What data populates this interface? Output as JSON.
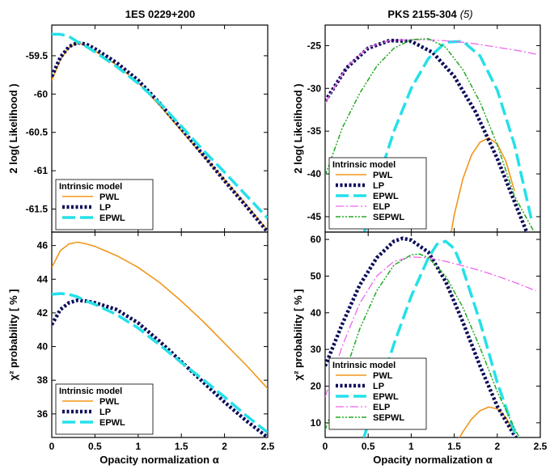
{
  "figure": {
    "titles": [
      "1ES 0229+200",
      "PKS 2155-304"
    ],
    "title_suffix": "(5)",
    "legend_title": "Intrinsic model"
  },
  "colors": {
    "PWL": "#f0961a",
    "LP": "#0c0c5a",
    "EPWL": "#24e0e8",
    "ELP": "#ee66ee",
    "SEPWL": "#22aa22"
  },
  "chart_data": [
    {
      "type": "line",
      "panel": "top-left",
      "title": "1ES 0229+200",
      "xlabel": "",
      "ylabel": "2 log( Likelihood )",
      "xlim": [
        0,
        2.5
      ],
      "ylim": [
        -61.8,
        -59.1
      ],
      "xticks": [],
      "yticks": [
        -61.5,
        -61,
        -60.5,
        -60,
        -59.5
      ],
      "legend": "bottom-left",
      "grid": false,
      "series": [
        {
          "name": "PWL",
          "x": [
            0,
            0.1,
            0.2,
            0.3,
            0.4,
            0.5,
            0.75,
            1,
            1.25,
            1.5,
            1.75,
            2,
            2.25,
            2.5
          ],
          "y": [
            -59.82,
            -59.55,
            -59.39,
            -59.33,
            -59.37,
            -59.44,
            -59.62,
            -59.85,
            -60.15,
            -60.48,
            -60.8,
            -61.12,
            -61.44,
            -61.78
          ]
        },
        {
          "name": "LP",
          "x": [
            0,
            0.1,
            0.2,
            0.3,
            0.4,
            0.5,
            0.75,
            1,
            1.25,
            1.5,
            1.75,
            2,
            2.25,
            2.5
          ],
          "y": [
            -59.77,
            -59.52,
            -59.38,
            -59.33,
            -59.35,
            -59.41,
            -59.59,
            -59.82,
            -60.12,
            -60.45,
            -60.79,
            -61.13,
            -61.46,
            -61.8
          ]
        },
        {
          "name": "EPWL",
          "x": [
            0,
            0.1,
            0.2,
            0.3,
            0.4,
            0.5,
            0.75,
            1,
            1.25,
            1.5,
            1.75,
            2,
            2.25,
            2.5
          ],
          "y": [
            -59.22,
            -59.22,
            -59.25,
            -59.32,
            -59.38,
            -59.45,
            -59.64,
            -59.86,
            -60.12,
            -60.42,
            -60.73,
            -61.02,
            -61.32,
            -61.62
          ]
        }
      ]
    },
    {
      "type": "line",
      "panel": "bottom-left",
      "title": "",
      "xlabel": "Opacity normalization α",
      "ylabel": "χ² probability [ % ]",
      "xlim": [
        0,
        2.5
      ],
      "ylim": [
        34.6,
        46.8
      ],
      "xticks": [
        0,
        0.5,
        1,
        1.5,
        2,
        2.5
      ],
      "yticks": [
        36,
        38,
        40,
        42,
        44,
        46
      ],
      "legend": "bottom-left",
      "grid": false,
      "series": [
        {
          "name": "PWL",
          "x": [
            0,
            0.1,
            0.2,
            0.3,
            0.4,
            0.5,
            0.75,
            1,
            1.25,
            1.5,
            1.75,
            2,
            2.25,
            2.5
          ],
          "y": [
            44.7,
            45.7,
            46.1,
            46.2,
            46.1,
            45.95,
            45.4,
            44.7,
            43.8,
            42.7,
            41.5,
            40.2,
            38.9,
            37.5
          ]
        },
        {
          "name": "LP",
          "x": [
            0,
            0.1,
            0.2,
            0.3,
            0.4,
            0.5,
            0.75,
            1,
            1.25,
            1.5,
            1.75,
            2,
            2.25,
            2.5
          ],
          "y": [
            41.3,
            42.2,
            42.6,
            42.75,
            42.7,
            42.6,
            42.2,
            41.4,
            40.3,
            39.1,
            37.9,
            36.7,
            35.6,
            34.6
          ]
        },
        {
          "name": "EPWL",
          "x": [
            0,
            0.1,
            0.2,
            0.3,
            0.4,
            0.5,
            0.75,
            1,
            1.25,
            1.5,
            1.75,
            2,
            2.25,
            2.5
          ],
          "y": [
            43.1,
            43.15,
            43.1,
            42.95,
            42.7,
            42.5,
            41.9,
            41.1,
            40.1,
            39.05,
            38.05,
            37.0,
            35.9,
            34.9
          ]
        }
      ]
    },
    {
      "type": "line",
      "panel": "top-right",
      "title": "PKS 2155-304",
      "xlabel": "",
      "ylabel": "2 log( Likelihood )",
      "xlim": [
        0,
        2.5
      ],
      "ylim": [
        -46.8,
        -22.6
      ],
      "xticks": [],
      "yticks": [
        -45,
        -40,
        -35,
        -30,
        -25
      ],
      "legend": "bottom-left",
      "grid": false,
      "series": [
        {
          "name": "PWL",
          "x": [
            1.4,
            1.5,
            1.6,
            1.7,
            1.8,
            1.9,
            2.0,
            2.1,
            2.2
          ],
          "y": [
            -50.5,
            -44.8,
            -40.6,
            -37.8,
            -36.3,
            -35.8,
            -36.5,
            -38.5,
            -42.0
          ]
        },
        {
          "name": "LP",
          "x": [
            0,
            0.25,
            0.5,
            0.75,
            1,
            1.25,
            1.5,
            1.75,
            2,
            2.25,
            2.45
          ],
          "y": [
            -31.5,
            -27.6,
            -25.3,
            -24.4,
            -24.5,
            -25.8,
            -28.6,
            -32.8,
            -38.2,
            -44.5,
            -49.5
          ]
        },
        {
          "name": "EPWL",
          "x": [
            0.45,
            0.6,
            0.8,
            1.0,
            1.2,
            1.4,
            1.6,
            1.8,
            2.0,
            2.2,
            2.4
          ],
          "y": [
            -47,
            -41.2,
            -35.0,
            -30.0,
            -26.5,
            -24.6,
            -24.5,
            -26.2,
            -30.2,
            -36.6,
            -45.5
          ]
        },
        {
          "name": "ELP",
          "x": [
            0,
            0.25,
            0.5,
            0.75,
            1,
            1.25,
            1.5,
            1.75,
            2,
            2.25,
            2.45
          ],
          "y": [
            -31.7,
            -27.5,
            -25.2,
            -24.4,
            -24.3,
            -24.35,
            -24.5,
            -24.8,
            -25.2,
            -25.6,
            -26.0
          ]
        },
        {
          "name": "SEPWL",
          "x": [
            0,
            0.2,
            0.4,
            0.6,
            0.8,
            1,
            1.2,
            1.4,
            1.6,
            1.8,
            2,
            2.2,
            2.45
          ],
          "y": [
            -40.2,
            -34.6,
            -30.6,
            -27.4,
            -25.3,
            -24.3,
            -24.2,
            -25.2,
            -27.8,
            -31.6,
            -36.6,
            -42.6,
            -47.2
          ]
        }
      ]
    },
    {
      "type": "line",
      "panel": "bottom-right",
      "title": "",
      "xlabel": "Opacity normalization α",
      "ylabel": "χ² probability [ % ]",
      "xlim": [
        0,
        2.5
      ],
      "ylim": [
        6,
        62
      ],
      "xticks": [
        0,
        0.5,
        1,
        1.5,
        2,
        2.5
      ],
      "yticks": [
        10,
        20,
        30,
        40,
        50,
        60
      ],
      "legend": "bottom-left",
      "grid": false,
      "series": [
        {
          "name": "PWL",
          "x": [
            1.5,
            1.6,
            1.7,
            1.8,
            1.9,
            2.0,
            2.1,
            2.2
          ],
          "y": [
            3.5,
            7.5,
            11.0,
            13.3,
            14.3,
            13.8,
            11.5,
            7.0
          ]
        },
        {
          "name": "LP",
          "x": [
            0,
            0.2,
            0.4,
            0.6,
            0.8,
            0.9,
            1.0,
            1.2,
            1.4,
            1.6,
            1.8,
            2.0,
            2.2,
            2.25
          ],
          "y": [
            25.5,
            37.0,
            47.5,
            55.0,
            59.5,
            60.3,
            59.8,
            56.5,
            48.5,
            37.5,
            25.5,
            14.5,
            6.5,
            5.0
          ]
        },
        {
          "name": "EPWL",
          "x": [
            0.45,
            0.6,
            0.8,
            1.0,
            1.2,
            1.3,
            1.4,
            1.5,
            1.6,
            1.8,
            2.0,
            2.2,
            2.25
          ],
          "y": [
            6.0,
            17.0,
            31.5,
            44.5,
            55.0,
            58.7,
            59.5,
            57.5,
            52.0,
            37.5,
            21.0,
            7.5,
            5.0
          ]
        },
        {
          "name": "ELP",
          "x": [
            0,
            0.2,
            0.4,
            0.6,
            0.8,
            1.0,
            1.2,
            1.4,
            1.6,
            1.8,
            2.0,
            2.2,
            2.45
          ],
          "y": [
            17.0,
            31.0,
            42.5,
            50.0,
            54.0,
            55.2,
            55.0,
            54.0,
            52.8,
            51.5,
            50.0,
            48.3,
            46.0
          ]
        },
        {
          "name": "SEPWL",
          "x": [
            0,
            0.2,
            0.4,
            0.6,
            0.8,
            1.0,
            1.1,
            1.2,
            1.4,
            1.6,
            1.8,
            2.0,
            2.2,
            2.3
          ],
          "y": [
            8.0,
            21.5,
            35.5,
            46.0,
            53.0,
            55.8,
            56.0,
            55.0,
            50.0,
            41.5,
            30.5,
            18.5,
            8.5,
            4.0
          ]
        }
      ]
    }
  ]
}
